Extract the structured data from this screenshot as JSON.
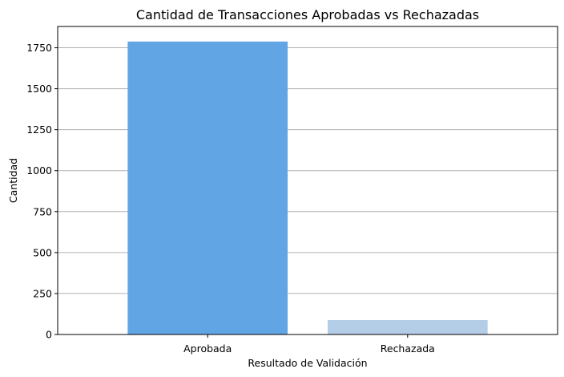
{
  "chart_data": {
    "type": "bar",
    "title": "Cantidad de Transacciones Aprobadas vs Rechazadas",
    "xlabel": "Resultado de Validación",
    "ylabel": "Cantidad",
    "categories": [
      "Aprobada",
      "Rechazada"
    ],
    "values": [
      1788,
      88
    ],
    "ylim": [
      0,
      1880
    ],
    "yticks": [
      0,
      250,
      500,
      750,
      1000,
      1250,
      1500,
      1750
    ],
    "grid": "y",
    "legend": "none",
    "colors": [
      "#62a5e4",
      "#b4cde6"
    ]
  }
}
